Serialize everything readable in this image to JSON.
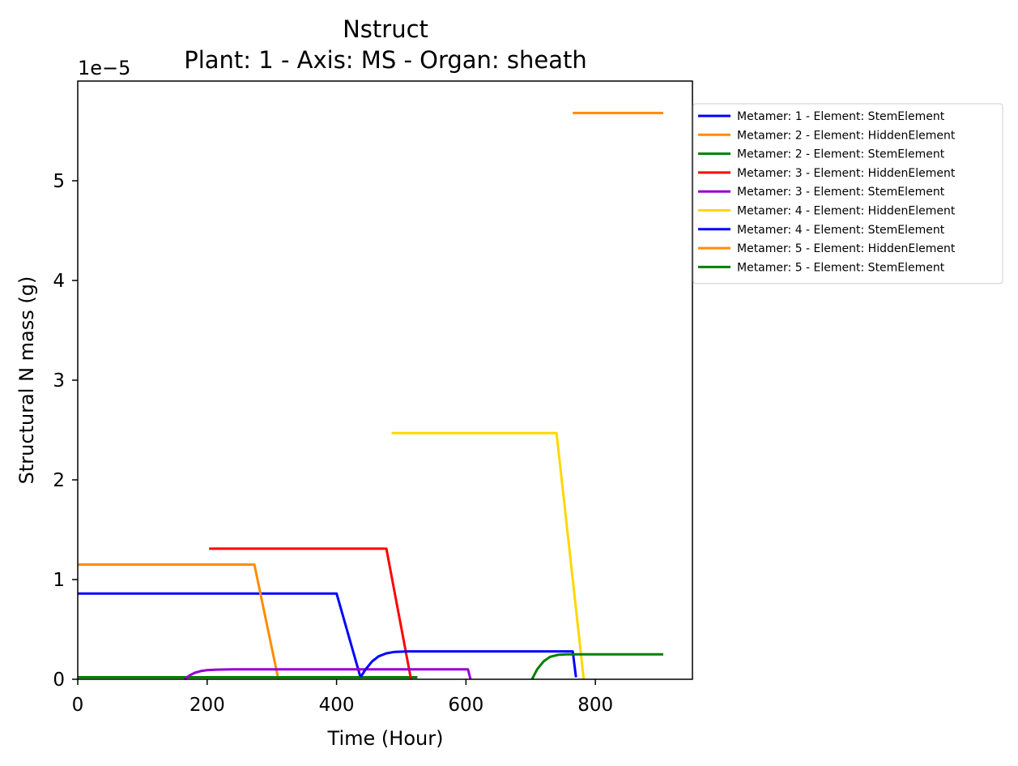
{
  "chart_data": {
    "type": "line",
    "title": "Nstruct",
    "subtitle": "Plant: 1 - Axis: MS - Organ: sheath",
    "xlabel": "Time (Hour)",
    "ylabel": "Structural N mass (g)",
    "y_offset_label": "1e−5",
    "xlim": [
      0,
      950
    ],
    "ylim": [
      0,
      6.0
    ],
    "y_scale_factor": 1e-05,
    "xticks": [
      0,
      200,
      400,
      600,
      800
    ],
    "yticks": [
      0,
      1,
      2,
      3,
      4,
      5
    ],
    "grid": false,
    "legend_position": "outside top-right",
    "series": [
      {
        "name": "Metamer: 1 - Element: StemElement",
        "color": "#0000ff",
        "points": [
          [
            0,
            0.86
          ],
          [
            400,
            0.86
          ],
          [
            437,
            0.02
          ]
        ]
      },
      {
        "name": "Metamer: 2 - Element: HiddenElement",
        "color": "#ff8c00",
        "points": [
          [
            0,
            1.15
          ],
          [
            273,
            1.15
          ],
          [
            310,
            0.0
          ]
        ]
      },
      {
        "name": "Metamer: 2 - Element: StemElement",
        "color": "#008000",
        "points": [
          [
            0,
            0.02
          ],
          [
            525,
            0.02
          ]
        ]
      },
      {
        "name": "Metamer: 3 - Element: HiddenElement",
        "color": "#ff0000",
        "points": [
          [
            203,
            1.31
          ],
          [
            477,
            1.31
          ],
          [
            515,
            0.0
          ]
        ]
      },
      {
        "name": "Metamer: 3 - Element: StemElement",
        "color": "#9400d3",
        "points": [
          [
            165,
            0.0
          ],
          [
            173,
            0.04
          ],
          [
            181,
            0.065
          ],
          [
            190,
            0.082
          ],
          [
            200,
            0.092
          ],
          [
            215,
            0.097
          ],
          [
            240,
            0.1
          ],
          [
            603,
            0.1
          ],
          [
            607,
            0.0
          ]
        ]
      },
      {
        "name": "Metamer: 4 - Element: HiddenElement",
        "color": "#ffd700",
        "points": [
          [
            485,
            2.47
          ],
          [
            740,
            2.47
          ],
          [
            782,
            0.0
          ]
        ]
      },
      {
        "name": "Metamer: 4 - Element: StemElement",
        "color": "#0000ff",
        "points": [
          [
            437,
            0.02
          ],
          [
            445,
            0.1
          ],
          [
            455,
            0.18
          ],
          [
            465,
            0.23
          ],
          [
            477,
            0.26
          ],
          [
            490,
            0.275
          ],
          [
            510,
            0.28
          ],
          [
            765,
            0.28
          ],
          [
            770,
            0.02
          ]
        ]
      },
      {
        "name": "Metamer: 5 - Element: HiddenElement",
        "color": "#ff8c00",
        "points": [
          [
            765,
            5.68
          ],
          [
            905,
            5.68
          ]
        ]
      },
      {
        "name": "Metamer: 5 - Element: StemElement",
        "color": "#008000",
        "points": [
          [
            702,
            0.0
          ],
          [
            710,
            0.1
          ],
          [
            720,
            0.18
          ],
          [
            730,
            0.225
          ],
          [
            742,
            0.245
          ],
          [
            755,
            0.25
          ],
          [
            905,
            0.25
          ]
        ]
      }
    ]
  }
}
